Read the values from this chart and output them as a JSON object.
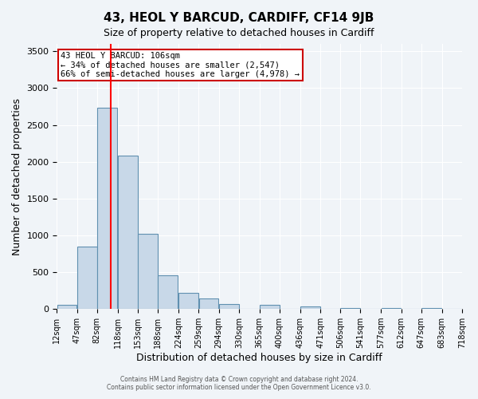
{
  "title": "43, HEOL Y BARCUD, CARDIFF, CF14 9JB",
  "subtitle": "Size of property relative to detached houses in Cardiff",
  "xlabel": "Distribution of detached houses by size in Cardiff",
  "ylabel": "Number of detached properties",
  "bar_color": "#c8d8e8",
  "bar_edge_color": "#6090b0",
  "background_color": "#f0f4f8",
  "grid_color": "#ffffff",
  "bin_edges": [
    12,
    47,
    82,
    118,
    153,
    188,
    224,
    259,
    294,
    330,
    365,
    400,
    436,
    471,
    506,
    541,
    577,
    612,
    647,
    683,
    718
  ],
  "bin_labels": [
    "12sqm",
    "47sqm",
    "82sqm",
    "118sqm",
    "153sqm",
    "188sqm",
    "224sqm",
    "259sqm",
    "294sqm",
    "330sqm",
    "365sqm",
    "400sqm",
    "436sqm",
    "471sqm",
    "506sqm",
    "541sqm",
    "577sqm",
    "612sqm",
    "647sqm",
    "683sqm",
    "718sqm"
  ],
  "bar_heights": [
    60,
    850,
    2730,
    2080,
    1020,
    455,
    215,
    148,
    65,
    0,
    55,
    0,
    35,
    0,
    18,
    0,
    12,
    0,
    8,
    0
  ],
  "ylim": [
    0,
    3600
  ],
  "yticks": [
    0,
    500,
    1000,
    1500,
    2000,
    2500,
    3000,
    3500
  ],
  "property_size": 106,
  "red_line_x": 106,
  "annotation_line1": "43 HEOL Y BARCUD: 106sqm",
  "annotation_line2": "← 34% of detached houses are smaller (2,547)",
  "annotation_line3": "66% of semi-detached houses are larger (4,978) →",
  "annotation_box_color": "#ffffff",
  "annotation_box_edge_color": "#cc0000",
  "footer_line1": "Contains HM Land Registry data © Crown copyright and database right 2024.",
  "footer_line2": "Contains public sector information licensed under the Open Government Licence v3.0."
}
